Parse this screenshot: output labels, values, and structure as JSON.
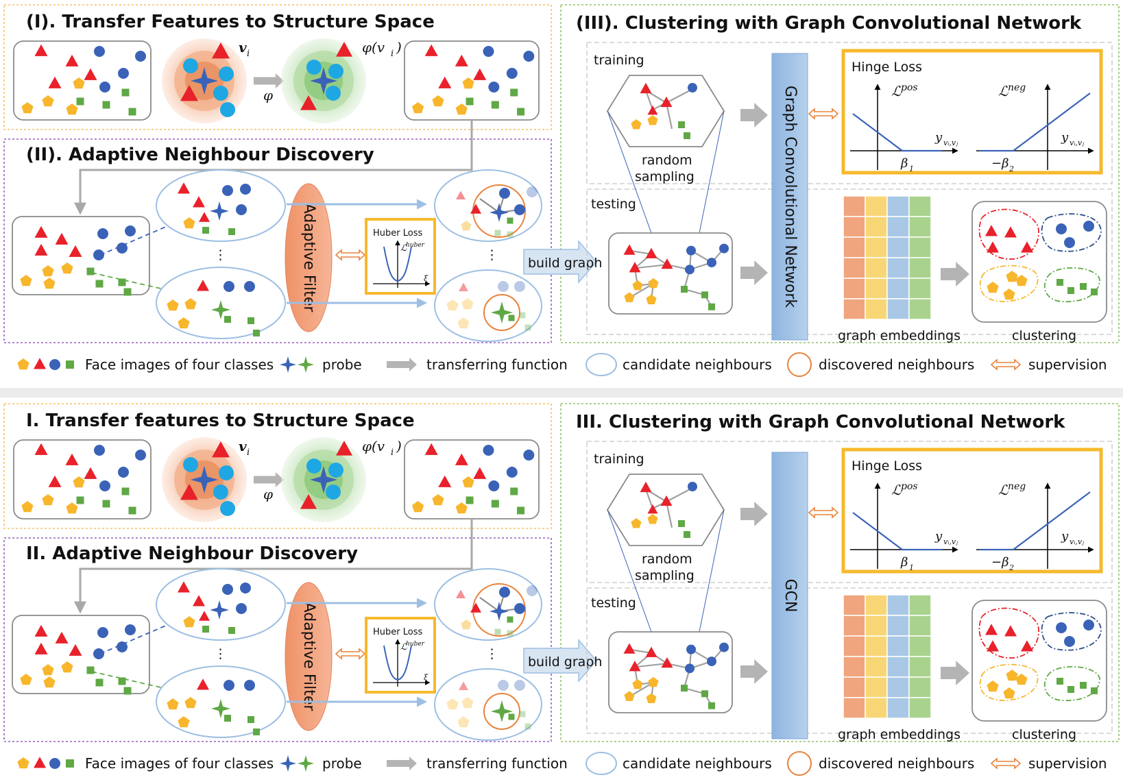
{
  "panels": [
    {
      "transfer": {
        "title": "(I). Transfer Features to Structure Space",
        "v_label": "v",
        "v_sub": "i",
        "phi_label": "φ(v",
        "phi_sub": "i",
        "phi_close": ")",
        "phi": "φ"
      },
      "discovery": {
        "title": "(II). Adaptive Neighbour Discovery",
        "filter_label": "Adaptive Filter",
        "huber_title": "Huber Loss",
        "huber_L": "ℒ",
        "huber_sup": "huber",
        "huber_xi": "ξ",
        "dots": "⋮",
        "build_graph": "build graph"
      },
      "clustering": {
        "title": "(III). Clustering with Graph Convolutional Network",
        "training": "training",
        "testing": "testing",
        "random": "random",
        "sampling": "sampling",
        "gcn_label": "Graph Convolutional Network",
        "hinge_title": "Hinge Loss",
        "L": "ℒ",
        "pos": "pos",
        "neg": "neg",
        "y": "y",
        "y_sub": "vᵢ,vⱼ",
        "beta1": "β",
        "beta1_sub": "1",
        "beta2": "−β",
        "beta2_sub": "2",
        "embeddings": "graph embeddings",
        "clustering": "clustering"
      },
      "legend": {
        "classes": "Face images of four classes",
        "probe": "probe",
        "transfer": "transferring function",
        "candidate": "candidate neighbours",
        "discovered": "discovered neighbours",
        "supervision": "supervision"
      }
    },
    {
      "transfer": {
        "title": "I. Transfer features to Structure Space",
        "v_label": "v",
        "v_sub": "i",
        "phi_label": "φ(v",
        "phi_sub": "i",
        "phi_close": ")",
        "phi": "φ"
      },
      "discovery": {
        "title": "II. Adaptive Neighbour Discovery",
        "filter_label": "Adaptive Filter",
        "huber_title": "Huber Loss",
        "huber_L": "ℒ",
        "huber_sup": "huber",
        "huber_xi": "ξ",
        "dots": "⋮",
        "build_graph": "build graph"
      },
      "clustering": {
        "title": "III. Clustering with Graph Convolutional Network",
        "training": "training",
        "testing": "testing",
        "random": "random",
        "sampling": "sampling",
        "gcn_label": "GCN",
        "hinge_title": "Hinge Loss",
        "L": "ℒ",
        "pos": "pos",
        "neg": "neg",
        "y": "y",
        "y_sub": "vᵢ,vⱼ",
        "beta1": "β",
        "beta1_sub": "1",
        "beta2": "−β",
        "beta2_sub": "2",
        "embeddings": "graph embeddings",
        "clustering": "clustering"
      },
      "legend": {
        "classes": "Face images of four classes",
        "probe": "probe",
        "transfer": "transferring function",
        "candidate": "candidate neighbours",
        "discovered": "discovered neighbours",
        "supervision": "supervision"
      }
    }
  ],
  "colors": {
    "red": "#e8212a",
    "blue": "#3a63b8",
    "yellow": "#f7b62b",
    "green": "#5fa845",
    "orange": "#e8823a",
    "gcn_bar": "#9dbfe3",
    "hinge_frame": "#f6b92b",
    "border_orange": "#f3c162",
    "border_purple": "#9a5cc0",
    "border_green": "#8fc16a",
    "embed_cols": [
      "#f0a57e",
      "#f8d675",
      "#a9c8e6",
      "#a9d38d"
    ]
  },
  "icons": {
    "probe": "four-point-star-icon",
    "transfer": "gray-right-arrow-icon",
    "supervision": "double-arrow-icon",
    "candidate": "blue-ellipse-icon",
    "discovered": "orange-circle-icon"
  }
}
